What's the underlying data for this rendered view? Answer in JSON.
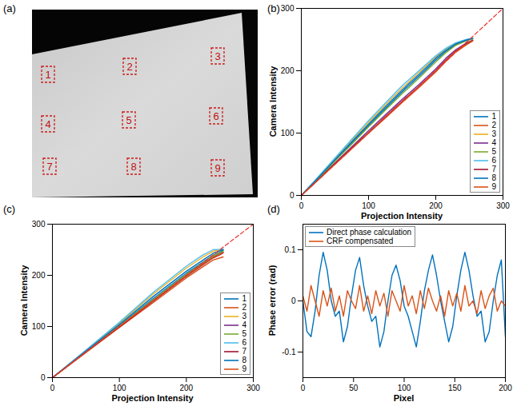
{
  "chart_data": [
    {
      "type": "image",
      "title": "(a)",
      "labels": [
        "1",
        "2",
        "3",
        "4",
        "5",
        "6",
        "7",
        "8",
        "9"
      ]
    },
    {
      "type": "line",
      "title": "(b)",
      "x_label": "Projection Intensity",
      "y_label": "Camera Intensity",
      "x": [
        0,
        25,
        50,
        75,
        100,
        125,
        150,
        175,
        200,
        215,
        230,
        245,
        255
      ],
      "series": [
        {
          "name": "1",
          "color": "#0072BD",
          "values": [
            0,
            28,
            56,
            84,
            112,
            139,
            166,
            191,
            217,
            231,
            242,
            248,
            252
          ]
        },
        {
          "name": "2",
          "color": "#D95319",
          "values": [
            0,
            25,
            50,
            75,
            100,
            124,
            149,
            173,
            198,
            215,
            230,
            241,
            248
          ]
        },
        {
          "name": "3",
          "color": "#EDB120",
          "values": [
            0,
            29,
            58,
            88,
            117,
            145,
            172,
            197,
            222,
            235,
            244,
            249,
            252
          ]
        },
        {
          "name": "4",
          "color": "#7E2F8E",
          "values": [
            0,
            26,
            52,
            78,
            104,
            129,
            154,
            178,
            203,
            220,
            234,
            244,
            249
          ]
        },
        {
          "name": "5",
          "color": "#77AC30",
          "values": [
            0,
            27,
            55,
            82,
            110,
            137,
            163,
            188,
            214,
            229,
            241,
            248,
            251
          ]
        },
        {
          "name": "6",
          "color": "#4DBEEE",
          "values": [
            0,
            30,
            60,
            90,
            120,
            148,
            176,
            200,
            224,
            236,
            245,
            250,
            252
          ]
        },
        {
          "name": "7",
          "color": "#A2142F",
          "values": [
            0,
            25,
            51,
            76,
            101,
            126,
            151,
            175,
            200,
            217,
            232,
            243,
            249
          ]
        },
        {
          "name": "8",
          "color": "#0072BD",
          "values": [
            0,
            28,
            57,
            86,
            114,
            142,
            169,
            194,
            220,
            233,
            243,
            249,
            252
          ]
        },
        {
          "name": "9",
          "color": "#D95319",
          "values": [
            0,
            25,
            50,
            75,
            100,
            125,
            150,
            174,
            199,
            216,
            231,
            242,
            248
          ]
        },
        {
          "color": "#E8302A",
          "line_style": "dashed",
          "x": [
            0,
            300
          ],
          "values": [
            0,
            300
          ]
        }
      ],
      "xlim": [
        0,
        300
      ],
      "ylim": [
        0,
        300
      ],
      "xticks": [
        0,
        100,
        200,
        300
      ],
      "yticks": [
        0,
        100,
        200,
        300
      ],
      "legend": "lower right"
    },
    {
      "type": "line",
      "title": "(c)",
      "x_label": "Projection Intensity",
      "y_label": "Camera Intensity",
      "x": [
        0,
        50,
        100,
        150,
        200,
        225,
        240,
        250,
        255
      ],
      "series": [
        {
          "name": "1",
          "color": "#0072BD",
          "values": [
            0,
            51,
            102,
            154,
            204,
            226,
            239,
            245,
            249
          ]
        },
        {
          "name": "2",
          "color": "#D95319",
          "values": [
            0,
            49,
            98,
            146,
            195,
            217,
            230,
            234,
            236
          ]
        },
        {
          "name": "3",
          "color": "#EDB120",
          "values": [
            0,
            53,
            106,
            163,
            214,
            236,
            247,
            250,
            251
          ]
        },
        {
          "name": "4",
          "color": "#7E2F8E",
          "values": [
            0,
            50,
            100,
            150,
            200,
            223,
            236,
            242,
            246
          ]
        },
        {
          "name": "5",
          "color": "#77AC30",
          "values": [
            0,
            51,
            101,
            152,
            202,
            225,
            238,
            244,
            248
          ]
        },
        {
          "name": "6",
          "color": "#4DBEEE",
          "values": [
            0,
            54,
            108,
            166,
            218,
            240,
            250,
            251,
            252
          ]
        },
        {
          "name": "7",
          "color": "#A2142F",
          "values": [
            0,
            50,
            99,
            149,
            198,
            221,
            234,
            240,
            244
          ]
        },
        {
          "name": "8",
          "color": "#0072BD",
          "values": [
            0,
            52,
            104,
            158,
            208,
            230,
            243,
            248,
            250
          ]
        },
        {
          "name": "9",
          "color": "#D95319",
          "values": [
            0,
            50,
            100,
            150,
            199,
            222,
            235,
            241,
            245
          ]
        },
        {
          "color": "#E8302A",
          "line_style": "dashed",
          "x": [
            0,
            300
          ],
          "values": [
            0,
            300
          ]
        }
      ],
      "xlim": [
        0,
        300
      ],
      "ylim": [
        0,
        300
      ],
      "xticks": [
        0,
        100,
        200,
        300
      ],
      "yticks": [
        0,
        100,
        200,
        300
      ],
      "legend": "lower right"
    },
    {
      "type": "line",
      "title": "(d)",
      "x_label": "Pixel",
      "y_label": "Phase error (rad)",
      "x": [
        0,
        4,
        8,
        12,
        16,
        20,
        24,
        28,
        32,
        36,
        40,
        44,
        48,
        52,
        56,
        60,
        64,
        68,
        72,
        76,
        80,
        84,
        88,
        92,
        96,
        100,
        104,
        108,
        112,
        116,
        120,
        124,
        128,
        132,
        136,
        140,
        144,
        148,
        152,
        156,
        160,
        164,
        168,
        172,
        176,
        180,
        184,
        188,
        192,
        196,
        200
      ],
      "series": [
        {
          "name": "Direct phase calculation",
          "color": "#0072BD",
          "values": [
            0.0,
            -0.06,
            -0.07,
            -0.02,
            0.05,
            0.095,
            0.06,
            0.0,
            -0.03,
            -0.02,
            -0.08,
            -0.05,
            0.01,
            0.06,
            0.085,
            0.03,
            -0.01,
            -0.04,
            -0.03,
            -0.09,
            -0.06,
            0.0,
            0.05,
            0.07,
            0.04,
            -0.01,
            -0.03,
            -0.06,
            -0.09,
            -0.04,
            0.02,
            0.06,
            0.09,
            0.05,
            0.0,
            -0.04,
            -0.08,
            -0.05,
            0.01,
            0.06,
            0.095,
            0.06,
            0.01,
            -0.03,
            -0.02,
            -0.08,
            -0.06,
            0.0,
            0.05,
            0.08,
            -0.07
          ]
        },
        {
          "name": "CRF compensated",
          "color": "#D95319",
          "values": [
            0.01,
            -0.02,
            0.03,
            0.0,
            -0.03,
            0.02,
            -0.01,
            0.025,
            -0.02,
            0.01,
            -0.03,
            0.02,
            0.0,
            -0.015,
            0.03,
            -0.02,
            0.01,
            -0.025,
            0.02,
            -0.01,
            0.015,
            -0.03,
            0.02,
            0.0,
            -0.02,
            0.03,
            -0.01,
            0.01,
            -0.025,
            0.02,
            -0.015,
            0.025,
            0.0,
            -0.02,
            0.01,
            -0.03,
            0.02,
            -0.01,
            0.015,
            -0.02,
            0.03,
            -0.01,
            0.0,
            -0.025,
            0.02,
            -0.015,
            0.01,
            0.025,
            -0.02,
            0.0,
            -0.01
          ]
        }
      ],
      "xlim": [
        0,
        200
      ],
      "ylim": [
        -0.15,
        0.15
      ],
      "xticks": [
        0,
        50,
        100,
        150,
        200
      ],
      "yticks": [
        -0.1,
        0,
        0.1
      ],
      "legend": "upper left"
    }
  ]
}
